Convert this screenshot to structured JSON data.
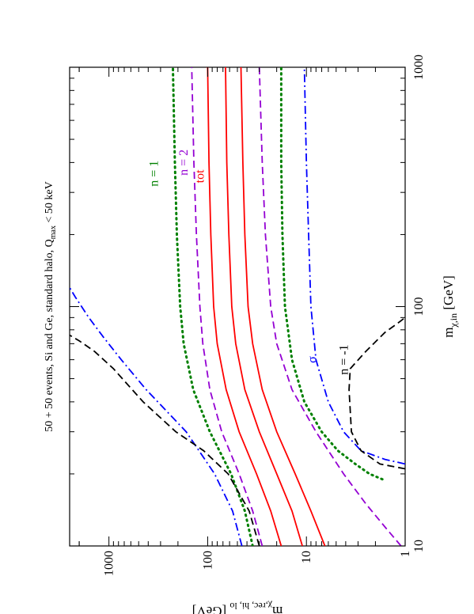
{
  "chart_data": {
    "type": "line",
    "title": "50 + 50 events, Si and Ge, standard halo, Q",
    "title_sub": "max",
    "title_suffix": " < 50 keV",
    "xlabel": "m",
    "xlabel_sub": "χ,in",
    "xlabel_unit": " [GeV]",
    "ylabel": "m",
    "ylabel_sub": "χ,rec, hi, lo",
    "ylabel_unit": " [GeV]",
    "xscale": "log",
    "yscale": "log",
    "xlim": [
      10,
      1000
    ],
    "ylim": [
      1,
      2500
    ],
    "x_tick_labels": [
      "10",
      "100",
      "1000"
    ],
    "x_tick_values": [
      10,
      100,
      1000
    ],
    "y_tick_labels": [
      "1",
      "10",
      "100",
      "1000"
    ],
    "y_tick_values": [
      1,
      10,
      100,
      1000
    ],
    "orientation": "rotated-90-ccw",
    "annotations": [
      {
        "text": "n = 1",
        "color": "#008000",
        "x": 360,
        "y": 320
      },
      {
        "text": "n = 2",
        "color": "#9400d3",
        "x": 400,
        "y": 160
      },
      {
        "text": "tot",
        "color": "#ff0000",
        "x": 350,
        "y": 110
      },
      {
        "text": "σ",
        "color": "#0000ff",
        "x": 60,
        "y": 8
      },
      {
        "text": "n = -1",
        "color": "#000000",
        "x": 60,
        "y": 3.8
      }
    ],
    "series": [
      {
        "style": "dotted",
        "color": "#008000",
        "points": [
          [
            10,
            35
          ],
          [
            14,
            42
          ],
          [
            20,
            58
          ],
          [
            30,
            95
          ],
          [
            45,
            140
          ],
          [
            70,
            175
          ],
          [
            100,
            190
          ],
          [
            200,
            205
          ],
          [
            400,
            215
          ],
          [
            1000,
            225
          ]
        ]
      },
      {
        "style": "dotted",
        "color": "#008000",
        "points": [
          [
            19,
            1.7
          ],
          [
            20,
            2.3
          ],
          [
            22,
            3.2
          ],
          [
            25,
            4.8
          ],
          [
            30,
            7
          ],
          [
            40,
            10.5
          ],
          [
            60,
            14
          ],
          [
            100,
            16.5
          ],
          [
            200,
            17.5
          ],
          [
            400,
            18
          ],
          [
            1000,
            18
          ]
        ]
      },
      {
        "style": "dashed",
        "color": "#9400d3",
        "points": [
          [
            10,
            28
          ],
          [
            14,
            35
          ],
          [
            20,
            48
          ],
          [
            30,
            72
          ],
          [
            45,
            95
          ],
          [
            70,
            112
          ],
          [
            100,
            120
          ],
          [
            200,
            130
          ],
          [
            400,
            138
          ],
          [
            1000,
            145
          ]
        ]
      },
      {
        "style": "dashed",
        "color": "#9400d3",
        "points": [
          [
            10,
            1.1
          ],
          [
            12,
            1.6
          ],
          [
            15,
            2.5
          ],
          [
            20,
            4.2
          ],
          [
            30,
            8
          ],
          [
            45,
            14
          ],
          [
            70,
            20
          ],
          [
            100,
            23
          ],
          [
            200,
            26
          ],
          [
            400,
            28
          ],
          [
            1000,
            30
          ]
        ]
      },
      {
        "style": "solid",
        "color": "#ff0000",
        "points": [
          [
            10,
            18
          ],
          [
            14,
            23
          ],
          [
            20,
            32
          ],
          [
            30,
            48
          ],
          [
            45,
            65
          ],
          [
            70,
            80
          ],
          [
            100,
            87
          ],
          [
            200,
            93
          ],
          [
            400,
            97
          ],
          [
            1000,
            100
          ]
        ]
      },
      {
        "style": "solid",
        "color": "#ff0000",
        "points": [
          [
            10,
            11
          ],
          [
            14,
            14
          ],
          [
            20,
            20
          ],
          [
            30,
            30
          ],
          [
            45,
            42
          ],
          [
            70,
            52
          ],
          [
            100,
            57
          ],
          [
            200,
            61
          ],
          [
            400,
            64
          ],
          [
            1000,
            66
          ]
        ]
      },
      {
        "style": "solid",
        "color": "#ff0000",
        "points": [
          [
            10,
            6.5
          ],
          [
            14,
            9
          ],
          [
            20,
            13
          ],
          [
            30,
            20
          ],
          [
            45,
            28
          ],
          [
            70,
            35
          ],
          [
            100,
            39
          ],
          [
            200,
            42
          ],
          [
            400,
            44
          ],
          [
            1000,
            46
          ]
        ]
      },
      {
        "style": "dashdot",
        "color": "#0000ff",
        "points": [
          [
            10,
            45
          ],
          [
            14,
            56
          ],
          [
            20,
            85
          ],
          [
            30,
            165
          ],
          [
            45,
            420
          ],
          [
            60,
            750
          ],
          [
            75,
            1150
          ],
          [
            90,
            1600
          ],
          [
            110,
            2200
          ],
          [
            120,
            2500
          ]
        ]
      },
      {
        "style": "dashdot",
        "color": "#0000ff",
        "points": [
          [
            22,
            1.0
          ],
          [
            23,
            1.6
          ],
          [
            25,
            2.8
          ],
          [
            30,
            4.2
          ],
          [
            40,
            6
          ],
          [
            60,
            8
          ],
          [
            100,
            9
          ],
          [
            200,
            9.5
          ],
          [
            400,
            10
          ],
          [
            1000,
            10.5
          ]
        ]
      },
      {
        "style": "dashed",
        "color": "#000000",
        "points": [
          [
            10,
            30
          ],
          [
            14,
            38
          ],
          [
            20,
            62
          ],
          [
            25,
            110
          ],
          [
            30,
            210
          ],
          [
            40,
            450
          ],
          [
            55,
            900
          ],
          [
            65,
            1400
          ],
          [
            72,
            2000
          ],
          [
            76,
            2500
          ]
        ]
      },
      {
        "style": "dashed",
        "color": "#000000",
        "points": [
          [
            21,
            1.0
          ],
          [
            22,
            1.8
          ],
          [
            25,
            2.8
          ],
          [
            30,
            3.5
          ],
          [
            45,
            3.7
          ],
          [
            55,
            3.6
          ],
          [
            65,
            2.5
          ],
          [
            78,
            1.6
          ],
          [
            85,
            1.2
          ],
          [
            90,
            1.0
          ]
        ]
      }
    ]
  }
}
